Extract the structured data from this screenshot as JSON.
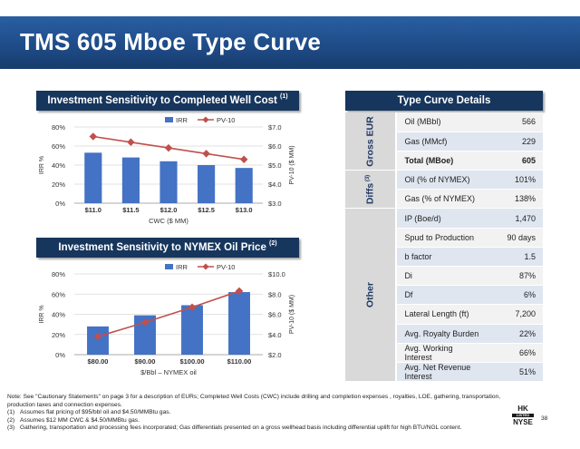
{
  "slide": {
    "title": "TMS 605 Mboe Type Curve",
    "page_number": "38"
  },
  "chart1_header": {
    "text": "Investment Sensitivity to Completed Well Cost ",
    "sup": "(1)"
  },
  "chart2_header": {
    "text": "Investment Sensitivity to NYMEX Oil Price ",
    "sup": "(2)"
  },
  "table_header": "Type Curve Details",
  "chart_data": [
    {
      "type": "bar",
      "title": "Investment Sensitivity to Completed Well Cost (1)",
      "categories": [
        "$11.0",
        "$11.5",
        "$12.0",
        "$12.5",
        "$13.0"
      ],
      "xlabel": "CWC ($ MM)",
      "ylabel": "IRR %",
      "y2label": "PV-10 ($ MM)",
      "ylim": [
        0,
        80
      ],
      "yticks": [
        "0%",
        "20%",
        "40%",
        "60%",
        "80%"
      ],
      "y2lim": [
        3.0,
        7.0
      ],
      "y2ticks": [
        "$3.0",
        "$4.0",
        "$5.0",
        "$6.0",
        "$7.0"
      ],
      "legend": "top-center",
      "colors": {
        "bar": "#4472c4",
        "line": "#c0504d"
      },
      "series": [
        {
          "name": "IRR",
          "kind": "bar",
          "axis": "left",
          "values": [
            53,
            48,
            44,
            40,
            37
          ]
        },
        {
          "name": "PV-10",
          "kind": "line",
          "axis": "right",
          "values": [
            6.5,
            6.2,
            5.9,
            5.6,
            5.3
          ]
        }
      ]
    },
    {
      "type": "bar",
      "title": "Investment Sensitivity to NYMEX Oil Price (2)",
      "categories": [
        "$80.00",
        "$90.00",
        "$100.00",
        "$110.00"
      ],
      "xlabel": "$/Bbl – NYMEX oil",
      "ylabel": "IRR %",
      "y2label": "PV-10 ($ MM)",
      "ylim": [
        0,
        80
      ],
      "yticks": [
        "0%",
        "20%",
        "40%",
        "60%",
        "80%"
      ],
      "y2lim": [
        2.0,
        10.0
      ],
      "y2ticks": [
        "$2.0",
        "$4.0",
        "$6.0",
        "$8.0",
        "$10.0"
      ],
      "legend": "top-center",
      "colors": {
        "bar": "#4472c4",
        "line": "#c0504d"
      },
      "series": [
        {
          "name": "IRR",
          "kind": "bar",
          "axis": "left",
          "values": [
            28,
            39,
            49,
            62
          ]
        },
        {
          "name": "PV-10",
          "kind": "line",
          "axis": "right",
          "values": [
            3.8,
            5.2,
            6.7,
            8.3
          ]
        }
      ]
    }
  ],
  "type_curve": {
    "groups": [
      {
        "name": "Gross EUR",
        "rows": [
          {
            "label": "Oil (MBbl)",
            "value": "566"
          },
          {
            "label": "Gas (MMcf)",
            "value": "229"
          },
          {
            "label": "Total (MBoe)",
            "value": "605",
            "bold": true
          }
        ]
      },
      {
        "name": "Diffs",
        "sup": "(3)",
        "rows": [
          {
            "label": "Oil (% of NYMEX)",
            "value": "101%"
          },
          {
            "label": "Gas (% of NYMEX)",
            "value": "138%"
          }
        ]
      },
      {
        "name": "Other",
        "rows": [
          {
            "label": "IP (Boe/d)",
            "value": "1,470"
          },
          {
            "label": "Spud to Production",
            "value": "90 days"
          },
          {
            "label": "b factor",
            "value": "1.5"
          },
          {
            "label": "Di",
            "value": "87%"
          },
          {
            "label": "Df",
            "value": "6%"
          },
          {
            "label": "Lateral Length (ft)",
            "value": "7,200"
          },
          {
            "label": "Avg. Royalty Burden",
            "value": "22%"
          },
          {
            "label": "Avg. Working Interest",
            "value": "66%"
          },
          {
            "label": "Avg. Net Revenue Interest",
            "value": "51%"
          }
        ]
      }
    ]
  },
  "footnotes": {
    "note": "Note: See \"Cautionary Statements\" on page 3 for a description of EURs; Completed Well Costs (CWC) include drilling and completion expenses , royalties, LOE, gathering, transportation, production taxes and connection expenses.",
    "items": [
      {
        "num": "(1)",
        "text": "Assumes flat pricing of $95/bbl oil and $4.50/MMBtu gas."
      },
      {
        "num": "(2)",
        "text": "Assumes $12 MM CWC & $4.50/MMBtu gas."
      },
      {
        "num": "(3)",
        "text": "Gathering, transportation and processing fees incorporated; Gas differentials presented on a gross wellhead basis including differential uplift for high BTU/NGL content."
      }
    ]
  },
  "logo": {
    "top": "HK",
    "middle": "LISTED",
    "bottom": "NYSE"
  }
}
